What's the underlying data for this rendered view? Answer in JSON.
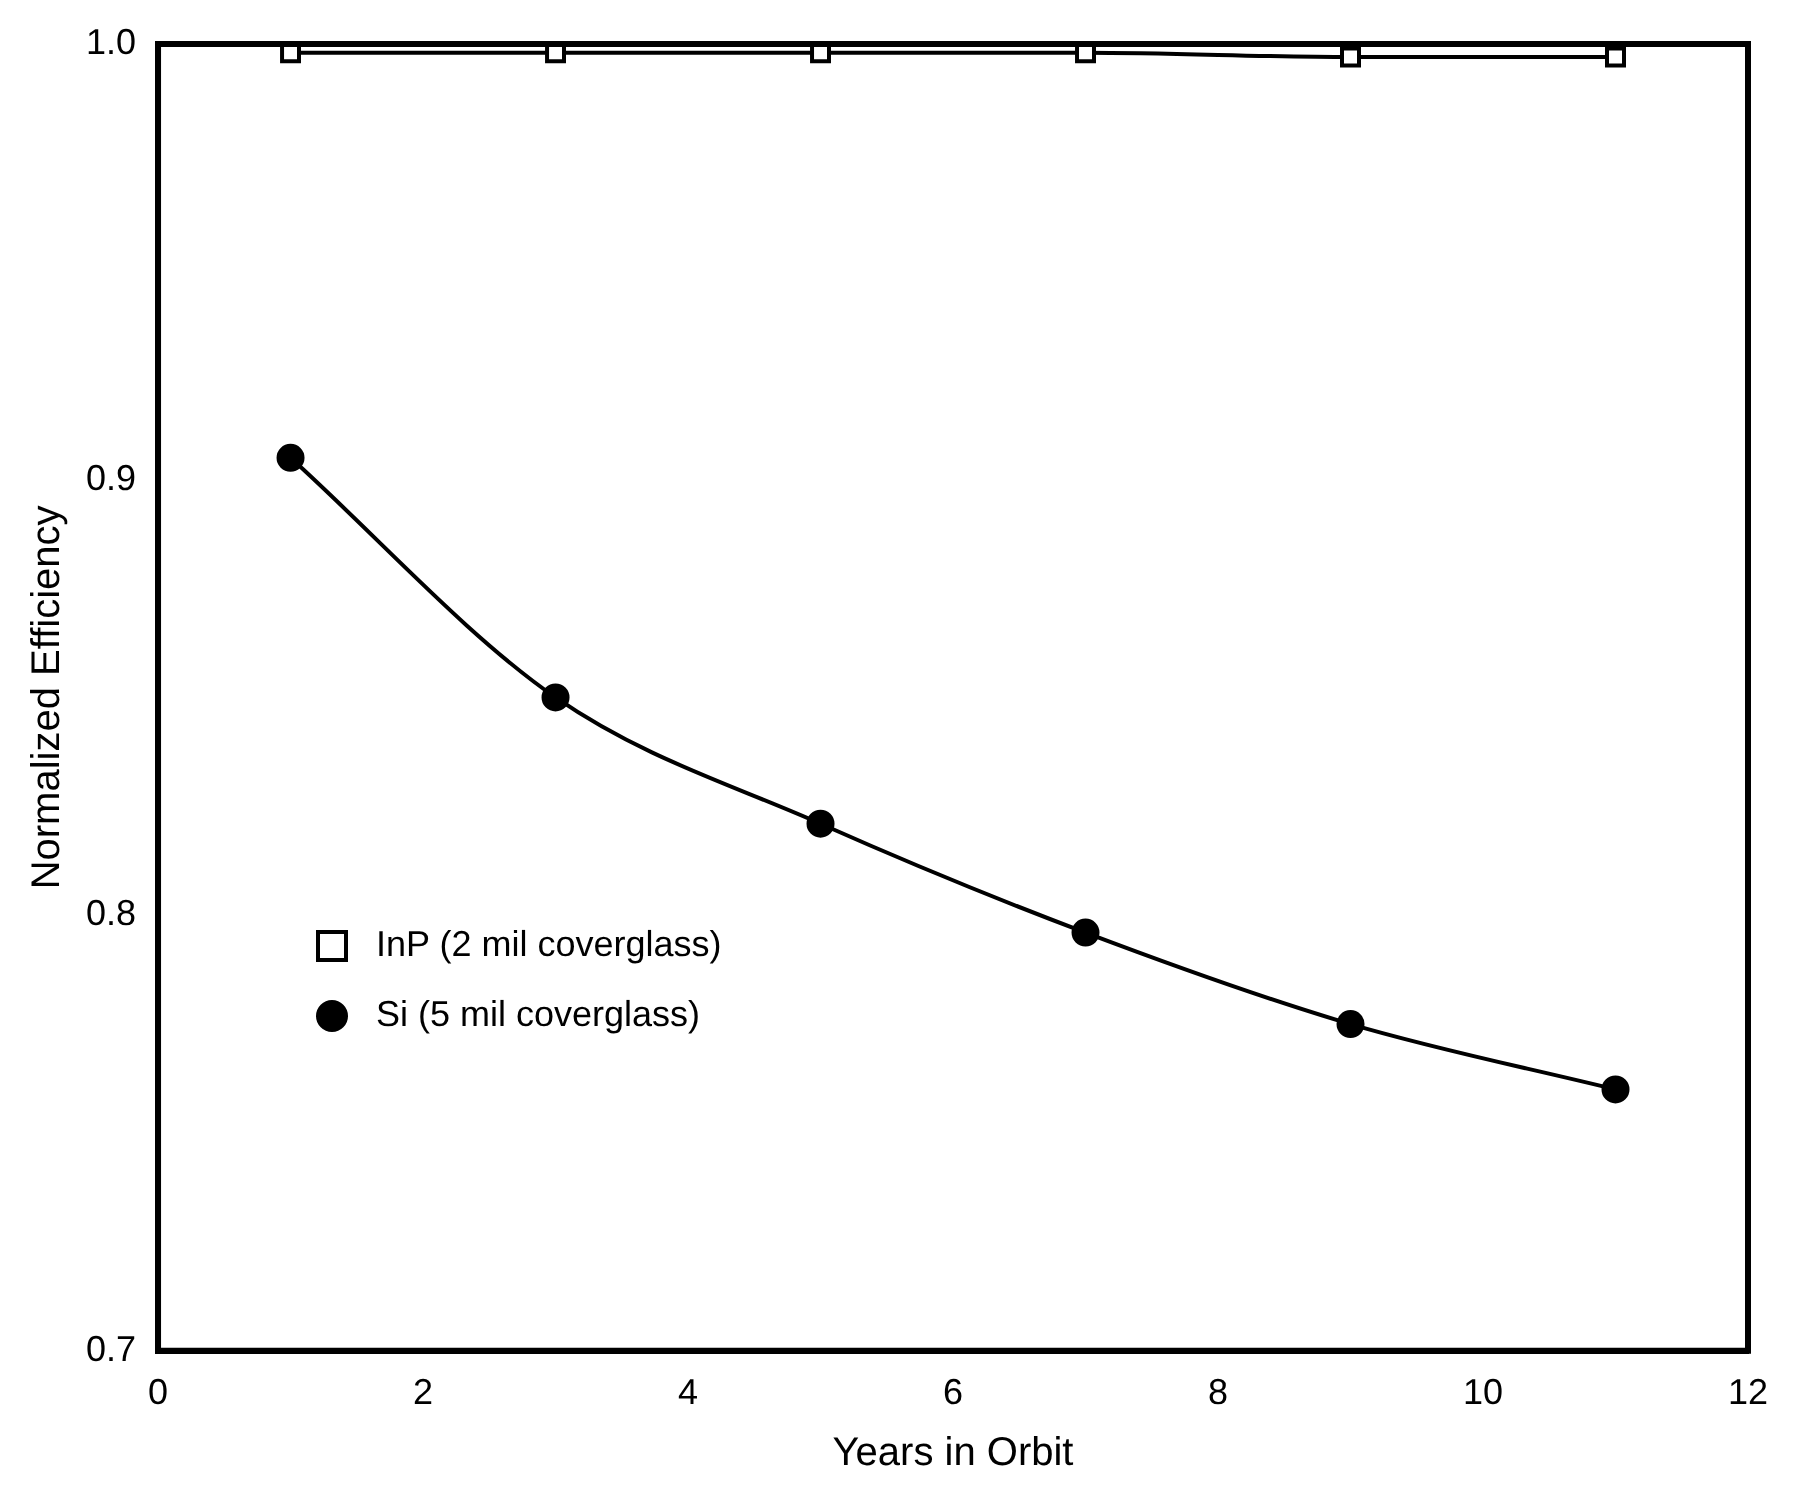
{
  "chart_data": {
    "type": "line",
    "xlabel": "Years in Orbit",
    "ylabel": "Normalized Efficiency",
    "x": [
      1,
      3,
      5,
      7,
      9,
      11
    ],
    "series": [
      {
        "name": "InP (2 mil coverglass)",
        "color": "#000000",
        "marker": "square",
        "values": [
          0.998,
          0.998,
          0.998,
          0.998,
          0.997,
          0.997
        ]
      },
      {
        "name": "Si (5 mil coverglass)",
        "color": "#000000",
        "marker": "circle",
        "values": [
          0.905,
          0.85,
          0.821,
          0.796,
          0.775,
          0.76
        ]
      }
    ],
    "xlim": [
      0,
      12
    ],
    "xticks": [
      0,
      2,
      4,
      6,
      8,
      10,
      12
    ],
    "ylim": [
      0.7,
      1.0
    ],
    "yticks": [
      0.7,
      0.8,
      0.9,
      {
        "value": 1,
        "label": "1.0"
      }
    ],
    "grid": false,
    "legend": "left",
    "line_style": "solid"
  }
}
